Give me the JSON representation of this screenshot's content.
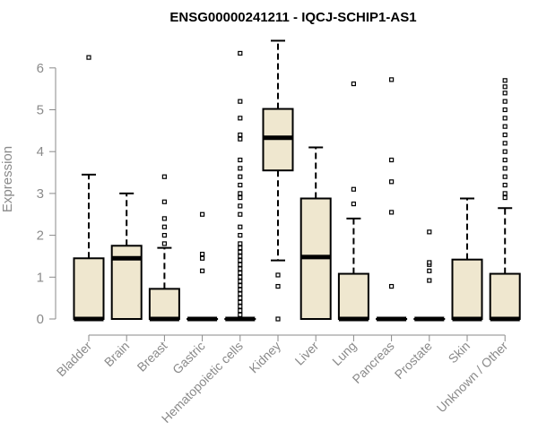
{
  "chart_data": {
    "type": "boxplot",
    "title": "ENSG00000241211 - IQCJ-SCHIP1-AS1",
    "ylabel": "Expression",
    "ylim": [
      0,
      6.7
    ],
    "yticks": [
      0,
      1,
      2,
      3,
      4,
      5,
      6
    ],
    "box_fill": "#efe7cf",
    "categories": [
      "Bladder",
      "Brain",
      "Breast",
      "Gastric",
      "Hematopoietic cells",
      "Kidney",
      "Liver",
      "Lung",
      "Pancreas",
      "Prostate",
      "Skin",
      "Unknown / Other"
    ],
    "boxes": [
      {
        "q1": 0,
        "median": 0,
        "q3": 1.45,
        "whisker_low": 0,
        "whisker_high": 3.45,
        "outliers": [
          6.25
        ]
      },
      {
        "q1": 0,
        "median": 1.45,
        "q3": 1.75,
        "whisker_low": 0,
        "whisker_high": 3.0,
        "outliers": []
      },
      {
        "q1": 0,
        "median": 0,
        "q3": 0.72,
        "whisker_low": 0,
        "whisker_high": 1.7,
        "outliers": [
          1.8,
          2.0,
          2.2,
          2.4,
          2.8,
          3.4
        ]
      },
      {
        "q1": 0,
        "median": 0,
        "q3": 0,
        "whisker_low": 0,
        "whisker_high": 0,
        "outliers": [
          1.15,
          1.45,
          1.55,
          2.5
        ]
      },
      {
        "q1": 0,
        "median": 0,
        "q3": 0,
        "whisker_low": 0,
        "whisker_high": 0,
        "outliers": [
          0.1,
          0.2,
          0.3,
          0.4,
          0.5,
          0.6,
          0.7,
          0.8,
          0.9,
          1.0,
          1.1,
          1.2,
          1.3,
          1.4,
          1.5,
          1.6,
          1.7,
          1.8,
          2.0,
          2.2,
          2.5,
          2.7,
          2.9,
          3.0,
          3.2,
          3.4,
          3.6,
          3.8,
          4.3,
          4.4,
          4.8,
          5.2,
          6.35
        ]
      },
      {
        "q1": 3.55,
        "median": 4.33,
        "q3": 5.02,
        "whisker_low": 1.4,
        "whisker_high": 6.65,
        "outliers": [
          1.05,
          0.78,
          0.0
        ]
      },
      {
        "q1": 0,
        "median": 1.48,
        "q3": 2.88,
        "whisker_low": 0,
        "whisker_high": 4.1,
        "outliers": []
      },
      {
        "q1": 0,
        "median": 0,
        "q3": 1.08,
        "whisker_low": 0,
        "whisker_high": 2.4,
        "outliers": [
          2.75,
          3.1,
          5.62
        ]
      },
      {
        "q1": 0,
        "median": 0,
        "q3": 0,
        "whisker_low": 0,
        "whisker_high": 0,
        "outliers": [
          0.78,
          2.55,
          3.28,
          3.8,
          5.72
        ]
      },
      {
        "q1": 0,
        "median": 0,
        "q3": 0,
        "whisker_low": 0,
        "whisker_high": 0,
        "outliers": [
          0.92,
          1.15,
          1.3,
          1.35,
          2.08
        ]
      },
      {
        "q1": 0,
        "median": 0,
        "q3": 1.42,
        "whisker_low": 0,
        "whisker_high": 2.88,
        "outliers": []
      },
      {
        "q1": 0,
        "median": 0,
        "q3": 1.08,
        "whisker_low": 0,
        "whisker_high": 2.65,
        "outliers": [
          2.9,
          3.0,
          3.2,
          3.4,
          3.6,
          3.8,
          4.0,
          4.2,
          4.4,
          4.6,
          4.8,
          5.0,
          5.2,
          5.4,
          5.55,
          5.7
        ]
      }
    ]
  }
}
